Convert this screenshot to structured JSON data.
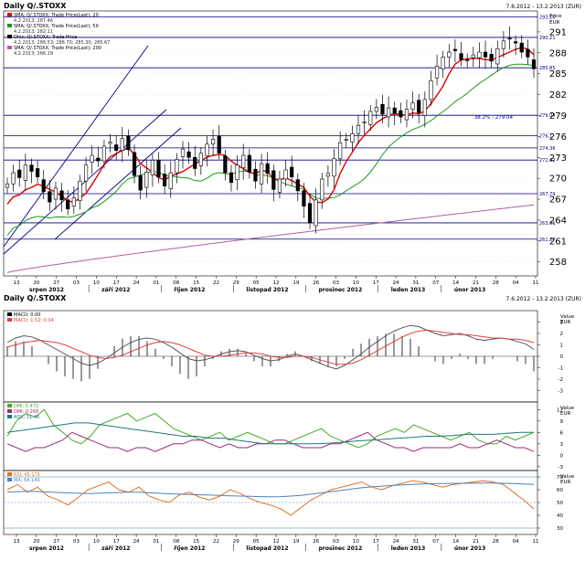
{
  "window": {
    "top_title": "Daily Q/.STOXX",
    "top_range": "7.6.2012 - 13.2.2013 (ZUR)",
    "bottom_title": "Daily Q/.STOXX",
    "bottom_range": "7.6.2012 - 13.2.2013 (ZUR)"
  },
  "colors": {
    "candle": "#000000",
    "sma20": "#e00000",
    "sma50": "#1a9a1a",
    "sma200": "#b060a0",
    "hline": "#000080",
    "channel": "#000080",
    "grid": "#c8c8c8",
    "macd": "#555555",
    "signal": "#e04040",
    "dmi_green": "#44aa22",
    "dmi_teal": "#1f7a7a",
    "dmi_purple": "#9a2a7a",
    "rsi": "#e07020",
    "rsi_ma": "#5080c0"
  },
  "legend_main": [
    {
      "icon": "swatch-red",
      "text": "SMA; Q/.STOXX; Trade Price(Last); 20"
    },
    {
      "icon": "",
      "text": "4.2.2013; 287.46"
    },
    {
      "icon": "swatch-green",
      "text": "SMA; Q/.STOXX; Trade Price(Last); 50"
    },
    {
      "icon": "",
      "text": "4.2.2013; 282.11"
    },
    {
      "icon": "swatch-black",
      "text": "Ohlc; Q/.STOXX; Trade Price"
    },
    {
      "icon": "",
      "text": "4.2.2013; 288.53; 288.70; 285.30; 285.67"
    },
    {
      "icon": "swatch-purple",
      "text": "SMA; Q/.STOXX; Trade Price(Last); 200"
    },
    {
      "icon": "",
      "text": "4.2.2013; 266.19"
    }
  ],
  "fib_label": "38.2% - 279.04",
  "value_header": [
    "Price",
    "EUR"
  ],
  "ind_header": [
    "Value",
    "EUR"
  ],
  "macd_legend": [
    "MACD; 0.00",
    "MACD; 1.52; 0.04"
  ],
  "dmi_legend": [
    "DMI; 5.472",
    "DMI; 0.268",
    "ADX; 11.46"
  ],
  "rsi_legend": [
    "RSI; 45.175",
    "MA; 64.149"
  ],
  "xaxis": {
    "day_ticks": [
      "13",
      "20",
      "27",
      "03",
      "10",
      "17",
      "24",
      "01",
      "08",
      "15",
      "22",
      "29",
      "05",
      "12",
      "19",
      "26",
      "03",
      "10",
      "17",
      "24",
      "31",
      "07",
      "14",
      "21",
      "28",
      "04",
      "11"
    ],
    "months": [
      "srpen 2012",
      "září 2012",
      "říjen 2012",
      "listopad 2012",
      "prosinec 2012",
      "leden 2013",
      "únor 2013"
    ]
  },
  "chart_data": [
    {
      "type": "candlestick",
      "title": "Daily Q/.STOXX",
      "ylim": [
        256,
        294
      ],
      "y_ticks": [
        258,
        261,
        264,
        267,
        270,
        273,
        276,
        279,
        282,
        285,
        288,
        291
      ],
      "horizontal_levels": [
        293.16,
        290.21,
        285.85,
        279.04,
        276.1,
        274.36,
        272.62,
        267.79,
        263.61,
        261.27
      ],
      "level_labels": [
        "293,16",
        "290,21",
        "285,85",
        "279,04",
        "276,1",
        "274,36",
        "272,62",
        "267,79",
        "263,61",
        "261,27"
      ],
      "close": [
        269.2,
        270.8,
        270.1,
        271.9,
        271.0,
        270.2,
        268.1,
        266.6,
        268.6,
        266.9,
        265.6,
        267.2,
        269.6,
        271.9,
        273.3,
        272.5,
        274.6,
        275.2,
        274.0,
        275.7,
        274.1,
        270.4,
        268.3,
        270.9,
        272.6,
        270.2,
        268.9,
        270.8,
        272.7,
        274.2,
        273.0,
        271.4,
        273.6,
        274.9,
        275.6,
        273.6,
        270.8,
        269.4,
        271.9,
        273.3,
        270.9,
        269.6,
        272.1,
        270.7,
        268.4,
        269.9,
        271.2,
        270.2,
        268.2,
        266.0,
        263.6,
        266.9,
        269.9,
        270.7,
        272.8,
        275.1,
        275.6,
        276.4,
        277.6,
        278.1,
        279.6,
        280.2,
        279.2,
        280.1,
        279.3,
        278.8,
        279.9,
        280.8,
        279.4,
        281.3,
        284.0,
        286.1,
        287.4,
        288.1,
        288.3,
        287.0,
        286.9,
        287.7,
        288.1,
        287.4,
        286.8,
        288.6,
        289.7,
        290.0,
        289.4,
        288.1,
        287.4,
        285.7
      ],
      "sma20_last": 287.46,
      "sma50_last": 282.11,
      "sma200_last": 266.19,
      "last_ohlc": {
        "date": "4.2.2013",
        "open": 288.53,
        "high": 288.7,
        "low": 285.3,
        "close": 285.67
      }
    },
    {
      "type": "line",
      "name": "MACD",
      "ylim": [
        -4,
        4
      ],
      "y_ticks": [
        3,
        2,
        1,
        0,
        -1,
        -2,
        -3
      ],
      "series": [
        {
          "name": "MACD",
          "values": [
            1.2,
            1.6,
            1.8,
            1.7,
            1.4,
            1.0,
            0.6,
            0.2,
            -0.2,
            -0.6,
            -0.8,
            -0.6,
            -0.2,
            0.3,
            0.8,
            1.2,
            1.5,
            1.6,
            1.5,
            1.2,
            0.8,
            0.3,
            -0.2,
            -0.4,
            -0.3,
            -0.1,
            0.2,
            0.4,
            0.5,
            0.4,
            0.1,
            -0.2,
            -0.4,
            -0.3,
            0.0,
            0.2,
            0.0,
            -0.3,
            -0.6,
            -0.9,
            -1.1,
            -0.8,
            -0.3,
            0.2,
            0.8,
            1.3,
            1.8,
            2.2,
            2.5,
            2.7,
            2.6,
            2.3,
            2.0,
            1.8,
            1.9,
            2.0,
            1.8,
            1.5,
            1.4,
            1.5,
            1.6,
            1.5,
            1.3,
            1.1,
            0.6
          ]
        },
        {
          "name": "Signal",
          "values": [
            0.8,
            1.0,
            1.2,
            1.3,
            1.4,
            1.3,
            1.2,
            1.0,
            0.7,
            0.4,
            0.1,
            -0.1,
            -0.2,
            -0.1,
            0.1,
            0.4,
            0.7,
            1.0,
            1.2,
            1.3,
            1.2,
            1.0,
            0.7,
            0.4,
            0.1,
            0.0,
            0.0,
            0.1,
            0.2,
            0.3,
            0.3,
            0.2,
            0.0,
            -0.1,
            -0.1,
            0.0,
            0.0,
            -0.1,
            -0.3,
            -0.5,
            -0.7,
            -0.7,
            -0.6,
            -0.3,
            0.1,
            0.5,
            0.9,
            1.3,
            1.7,
            2.0,
            2.2,
            2.3,
            2.2,
            2.1,
            2.0,
            1.9,
            1.9,
            1.8,
            1.7,
            1.6,
            1.6,
            1.5,
            1.5,
            1.4,
            1.2
          ]
        }
      ]
    },
    {
      "type": "line",
      "name": "DMI",
      "ylim": [
        -4,
        14
      ],
      "y_ticks": [
        12,
        9,
        6,
        3,
        0,
        -3
      ],
      "series": [
        {
          "name": "DI+",
          "values": [
            5,
            9,
            11,
            10,
            12,
            8,
            6,
            4,
            3,
            5,
            8,
            9,
            10,
            11,
            9,
            10,
            11,
            9,
            7,
            6,
            5,
            4,
            5,
            6,
            4,
            5,
            6,
            5,
            4,
            3,
            3,
            4,
            5,
            6,
            7,
            5,
            4,
            3,
            2,
            3,
            5,
            6,
            7,
            6,
            8,
            7,
            6,
            5,
            4,
            5,
            6,
            4,
            3,
            3,
            5,
            4,
            5,
            6
          ]
        },
        {
          "name": "DI-",
          "values": [
            3,
            2,
            1,
            2,
            2,
            3,
            4,
            6,
            5,
            4,
            3,
            2,
            2,
            1,
            2,
            2,
            1,
            2,
            3,
            3,
            4,
            4,
            3,
            2,
            3,
            2,
            2,
            3,
            3,
            4,
            4,
            3,
            2,
            2,
            2,
            3,
            3,
            4,
            5,
            6,
            4,
            3,
            2,
            2,
            1,
            2,
            2,
            2,
            2,
            3,
            2,
            2,
            3,
            4,
            3,
            2,
            2,
            1
          ]
        },
        {
          "name": "ADX",
          "values": [
            6,
            6.5,
            7,
            7.5,
            8,
            8.5,
            8.5,
            8,
            7.5,
            7,
            6.5,
            6,
            5.5,
            5,
            5,
            4.5,
            4.5,
            4,
            3.5,
            3,
            3,
            3,
            3,
            3,
            3.2,
            3.5,
            3.8,
            4,
            4.2,
            4.5,
            4.7,
            5,
            5,
            5.2,
            5.5,
            5.5,
            5.5,
            5.8,
            6,
            6
          ]
        }
      ]
    },
    {
      "type": "line",
      "name": "RSI",
      "ylim": [
        25,
        75
      ],
      "y_ticks": [
        70,
        60,
        50,
        40,
        30
      ],
      "series": [
        {
          "name": "RSI",
          "values": [
            60,
            64,
            58,
            62,
            55,
            52,
            48,
            54,
            60,
            63,
            66,
            60,
            58,
            62,
            55,
            52,
            50,
            56,
            58,
            54,
            52,
            55,
            60,
            57,
            53,
            50,
            48,
            45,
            40,
            46,
            52,
            56,
            60,
            62,
            64,
            66,
            62,
            60,
            63,
            65,
            67,
            66,
            64,
            62,
            64,
            65,
            66,
            67,
            66,
            64,
            58,
            52,
            45
          ]
        },
        {
          "name": "MA",
          "values": [
            58,
            58.5,
            58.8,
            58.6,
            58.2,
            57.8,
            57.5,
            57.2,
            57,
            57.2,
            57.5,
            57.8,
            58,
            58,
            57.6,
            57.2,
            56.8,
            56.5,
            56.2,
            56,
            55.8,
            55.5,
            55.2,
            55,
            54.8,
            54.6,
            54.5,
            54.6,
            55,
            55.6,
            56.5,
            57.5,
            58.5,
            59.5,
            60.5,
            61.5,
            62.2,
            62.8,
            63.3,
            63.8,
            64.2,
            64.5,
            64.7,
            64.8,
            64.9,
            65,
            65.1,
            65.2,
            65.2,
            65,
            64.8,
            64.5,
            64.1
          ]
        }
      ]
    }
  ]
}
